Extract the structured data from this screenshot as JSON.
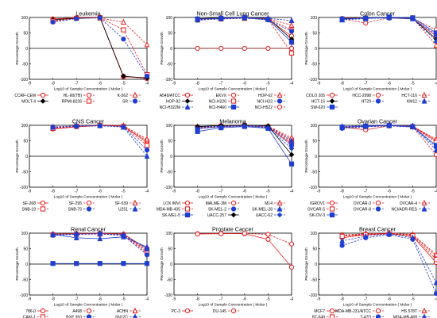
{
  "figure": {
    "common": {
      "xlabel": "Log10 of Sample Concentration ( Molar )",
      "ylabel": "Percentage Growth",
      "xlim": [
        -9,
        -4
      ],
      "ylim": [
        -100,
        100
      ],
      "xticks": [
        -9,
        -8,
        -7,
        -6,
        -5,
        -4
      ],
      "yticks": [
        -100,
        -50,
        0,
        50,
        100
      ],
      "grid": "horizontal lines at y=0 (solid) plus frame"
    }
  },
  "chart_data": [
    {
      "type": "line",
      "title": "Leukemia",
      "x": [
        -8,
        -7,
        -6,
        -5,
        -4
      ],
      "series": [
        {
          "name": "CCRF-CEM",
          "color": "#e31a1c",
          "marker": "circle",
          "dash": "solid",
          "values": [
            95,
            99,
            100,
            -92,
            -95
          ]
        },
        {
          "name": "HL-60(TB)",
          "color": "#e31a1c",
          "marker": "circle",
          "dash": "dashed",
          "values": [
            90,
            98,
            101,
            -90,
            -98
          ]
        },
        {
          "name": "K-562",
          "color": "#e31a1c",
          "marker": "triangle",
          "dash": "dashed",
          "values": [
            94,
            99,
            98,
            85,
            12
          ]
        },
        {
          "name": "MOLT-4",
          "color": "#000000",
          "marker": "diamond",
          "dash": "solid",
          "values": [
            93,
            97,
            100,
            -90,
            -96
          ]
        },
        {
          "name": "RPMI-8226",
          "color": "#e31a1c",
          "marker": "square",
          "dash": "dashed",
          "values": [
            88,
            97,
            99,
            60,
            -85
          ]
        },
        {
          "name": "SR",
          "color": "#1f3fcf",
          "marker": "circle",
          "dash": "dashed",
          "values": [
            85,
            96,
            99,
            30,
            -90
          ]
        }
      ],
      "legend": [
        [
          "CCRF-CEM",
          "HL-60(TB)",
          "K-562"
        ],
        [
          "MOLT-4",
          "RPMI-8226",
          "SR"
        ]
      ]
    },
    {
      "type": "line",
      "title": "Non-Small Cell Lung Cancer",
      "x": [
        -8,
        -7,
        -6,
        -5,
        -4
      ],
      "series": [
        {
          "name": "A549/ATCC",
          "color": "#e31a1c",
          "marker": "circle",
          "dash": "solid",
          "values": [
            95,
            98,
            99,
            94,
            40
          ]
        },
        {
          "name": "EKVX",
          "color": "#e31a1c",
          "marker": "circle",
          "dash": "dashed",
          "values": [
            93,
            97,
            100,
            95,
            60
          ]
        },
        {
          "name": "HOP-62",
          "color": "#e31a1c",
          "marker": "triangle",
          "dash": "dashed",
          "values": [
            94,
            96,
            98,
            96,
            75
          ]
        },
        {
          "name": "HOP-92",
          "color": "#000000",
          "marker": "diamond",
          "dash": "solid",
          "values": [
            96,
            99,
            101,
            97,
            30
          ]
        },
        {
          "name": "NCI-H226",
          "color": "#e31a1c",
          "marker": "square",
          "dash": "dashed",
          "values": [
            92,
            95,
            97,
            94,
            -15
          ]
        },
        {
          "name": "NCI-H23",
          "color": "#1f3fcf",
          "marker": "circle",
          "dash": "dashed",
          "values": [
            91,
            95,
            98,
            92,
            55
          ]
        },
        {
          "name": "NCI-H322M",
          "color": "#1f3fcf",
          "marker": "triangle",
          "dash": "dashed",
          "values": [
            94,
            98,
            100,
            97,
            90
          ]
        },
        {
          "name": "NCI-H460",
          "color": "#1f3fcf",
          "marker": "square",
          "dash": "solid",
          "values": [
            95,
            97,
            99,
            93,
            20
          ]
        },
        {
          "name": "NCI-H522",
          "color": "#e31a1c",
          "marker": "circle",
          "dash": "dashed",
          "values": [
            0,
            0,
            0,
            0,
            0
          ]
        }
      ],
      "legend": [
        [
          "A549/ATCC",
          "EKVX",
          "HOP-62"
        ],
        [
          "HOP-92",
          "NCI-H226",
          "NCI-H23"
        ],
        [
          "NCI-H322M",
          "NCI-H460",
          "NCI-H522"
        ]
      ]
    },
    {
      "type": "line",
      "title": "Colon Cancer",
      "x": [
        -8,
        -7,
        -6,
        -5,
        -4
      ],
      "series": [
        {
          "name": "COLO 205",
          "color": "#e31a1c",
          "marker": "circle",
          "dash": "solid",
          "values": [
            97,
            99,
            98,
            96,
            40
          ]
        },
        {
          "name": "HCC-2998",
          "color": "#e31a1c",
          "marker": "circle",
          "dash": "dashed",
          "values": [
            95,
            82,
            99,
            97,
            60
          ]
        },
        {
          "name": "HCT-116",
          "color": "#e31a1c",
          "marker": "triangle",
          "dash": "dashed",
          "values": [
            93,
            97,
            100,
            98,
            10
          ]
        },
        {
          "name": "HCT-15",
          "color": "#000000",
          "marker": "diamond",
          "dash": "solid",
          "values": [
            96,
            98,
            99,
            97,
            30
          ]
        },
        {
          "name": "HT29",
          "color": "#1f3fcf",
          "marker": "circle",
          "dash": "dashed",
          "values": [
            94,
            97,
            98,
            95,
            45
          ]
        },
        {
          "name": "KM12",
          "color": "#1f3fcf",
          "marker": "triangle",
          "dash": "dashed",
          "values": [
            92,
            96,
            100,
            96,
            25
          ]
        },
        {
          "name": "SW-620",
          "color": "#1f3fcf",
          "marker": "square",
          "dash": "solid",
          "values": [
            95,
            98,
            101,
            99,
            50
          ]
        }
      ],
      "legend": [
        [
          "COLO 205",
          "HCC-2998",
          "HCT-116"
        ],
        [
          "HCT-15",
          "HT29",
          "KM12"
        ],
        [
          "SW-620",
          "",
          ""
        ]
      ]
    },
    {
      "type": "line",
      "title": "CNS Cancer",
      "x": [
        -8,
        -7,
        -6,
        -5,
        -4
      ],
      "series": [
        {
          "name": "SF-268",
          "color": "#e31a1c",
          "marker": "circle",
          "dash": "solid",
          "values": [
            88,
            95,
            99,
            97,
            45
          ]
        },
        {
          "name": "SF-295",
          "color": "#e31a1c",
          "marker": "circle",
          "dash": "dashed",
          "values": [
            92,
            96,
            100,
            96,
            50
          ]
        },
        {
          "name": "SF-539",
          "color": "#e31a1c",
          "marker": "triangle",
          "dash": "dashed",
          "values": [
            95,
            98,
            101,
            99,
            55
          ]
        },
        {
          "name": "SNB-19",
          "color": "#e31a1c",
          "marker": "square",
          "dash": "dashed",
          "values": [
            90,
            97,
            99,
            96,
            35
          ]
        },
        {
          "name": "SNB-75",
          "color": "#1f3fcf",
          "marker": "circle",
          "dash": "dashed",
          "values": [
            93,
            97,
            98,
            95,
            20
          ]
        },
        {
          "name": "U251",
          "color": "#1f3fcf",
          "marker": "triangle",
          "dash": "dashed",
          "values": [
            94,
            98,
            100,
            94,
            0
          ]
        }
      ],
      "legend": [
        [
          "SF-268",
          "SF-295",
          "SF-539"
        ],
        [
          "SNB-19",
          "SNB-75",
          "U251"
        ]
      ]
    },
    {
      "type": "line",
      "title": "Melanoma",
      "x": [
        -8,
        -7,
        -6,
        -5,
        -4
      ],
      "series": [
        {
          "name": "LOX IMVI",
          "color": "#e31a1c",
          "marker": "circle",
          "dash": "solid",
          "values": [
            90,
            96,
            99,
            94,
            40
          ]
        },
        {
          "name": "MALME-3M",
          "color": "#e31a1c",
          "marker": "circle",
          "dash": "dashed",
          "values": [
            92,
            95,
            98,
            96,
            55
          ]
        },
        {
          "name": "M14",
          "color": "#e31a1c",
          "marker": "triangle",
          "dash": "dashed",
          "values": [
            94,
            98,
            100,
            97,
            60
          ]
        },
        {
          "name": "MDA-MB-435",
          "color": "#e31a1c",
          "marker": "square",
          "dash": "dashed",
          "values": [
            93,
            97,
            99,
            95,
            45
          ]
        },
        {
          "name": "SK-MEL-2",
          "color": "#1f3fcf",
          "marker": "circle",
          "dash": "dashed",
          "values": [
            91,
            96,
            97,
            94,
            35
          ]
        },
        {
          "name": "SK-MEL-28",
          "color": "#1f3fcf",
          "marker": "triangle",
          "dash": "dashed",
          "values": [
            95,
            97,
            99,
            96,
            50
          ]
        },
        {
          "name": "SK-MEL-5",
          "color": "#1f3fcf",
          "marker": "square",
          "dash": "solid",
          "values": [
            80,
            92,
            96,
            90,
            -25
          ]
        },
        {
          "name": "UACC-257",
          "color": "#000000",
          "marker": "diamond",
          "dash": "solid",
          "values": [
            96,
            99,
            101,
            98,
            5
          ]
        },
        {
          "name": "UACC-62",
          "color": "#1f3fcf",
          "marker": "diamond",
          "dash": "dashed",
          "values": [
            89,
            95,
            98,
            92,
            25
          ]
        }
      ],
      "legend": [
        [
          "LOX IMVI",
          "MALME-3M",
          "M14"
        ],
        [
          "MDA-MB-435",
          "SK-MEL-2",
          "SK-MEL-28"
        ],
        [
          "SK-MEL-5",
          "UACC-257",
          "UACC-62"
        ]
      ]
    },
    {
      "type": "line",
      "title": "Ovarian Cancer",
      "x": [
        -8,
        -7,
        -6,
        -5,
        -4
      ],
      "series": [
        {
          "name": "IGROV1",
          "color": "#e31a1c",
          "marker": "circle",
          "dash": "solid",
          "values": [
            95,
            85,
            99,
            97,
            50
          ]
        },
        {
          "name": "OVCAR-3",
          "color": "#e31a1c",
          "marker": "circle",
          "dash": "dashed",
          "values": [
            92,
            96,
            98,
            95,
            5
          ]
        },
        {
          "name": "OVCAR-4",
          "color": "#e31a1c",
          "marker": "triangle",
          "dash": "dashed",
          "values": [
            94,
            98,
            100,
            97,
            55
          ]
        },
        {
          "name": "OVCAR-5",
          "color": "#e31a1c",
          "marker": "square",
          "dash": "dashed",
          "values": [
            93,
            97,
            99,
            96,
            45
          ]
        },
        {
          "name": "OVCAR-8",
          "color": "#1f3fcf",
          "marker": "circle",
          "dash": "dashed",
          "values": [
            90,
            95,
            98,
            94,
            30
          ]
        },
        {
          "name": "NCI/ADR-RES",
          "color": "#1f3fcf",
          "marker": "triangle",
          "dash": "dashed",
          "values": [
            96,
            99,
            101,
            98,
            20
          ]
        },
        {
          "name": "SK-OV-3",
          "color": "#1f3fcf",
          "marker": "square",
          "dash": "solid",
          "values": [
            94,
            97,
            99,
            95,
            35
          ]
        }
      ],
      "legend": [
        [
          "IGROV1",
          "OVCAR-3",
          "OVCAR-4"
        ],
        [
          "OVCAR-5",
          "OVCAR-8",
          "NCI/ADR-RES"
        ],
        [
          "SK-OV-3",
          "",
          ""
        ]
      ]
    },
    {
      "type": "line",
      "title": "Renal Cancer",
      "x": [
        -8,
        -7,
        -6,
        -5,
        -4
      ],
      "series": [
        {
          "name": "786-0",
          "color": "#e31a1c",
          "marker": "circle",
          "dash": "solid",
          "values": [
            97,
            98,
            99,
            97,
            50
          ]
        },
        {
          "name": "A498",
          "color": "#e31a1c",
          "marker": "circle",
          "dash": "dashed",
          "values": [
            95,
            97,
            98,
            95,
            45
          ]
        },
        {
          "name": "ACHN",
          "color": "#e31a1c",
          "marker": "triangle",
          "dash": "dashed",
          "values": [
            96,
            99,
            100,
            96,
            40
          ]
        },
        {
          "name": "CAKI-1",
          "color": "#e31a1c",
          "marker": "square",
          "dash": "dashed",
          "values": [
            94,
            96,
            97,
            93,
            35
          ]
        },
        {
          "name": "RXF 393",
          "color": "#1f3fcf",
          "marker": "circle",
          "dash": "dashed",
          "values": [
            93,
            96,
            98,
            92,
            30
          ]
        },
        {
          "name": "SN12C",
          "color": "#1f3fcf",
          "marker": "triangle",
          "dash": "dashed",
          "values": [
            95,
            97,
            99,
            94,
            50
          ]
        },
        {
          "name": "TK-10",
          "color": "#1f3fcf",
          "marker": "triangle",
          "dash": "solid",
          "values": [
            96,
            85,
            82,
            88,
            55
          ]
        },
        {
          "name": "UO-31",
          "color": "#1f3fcf",
          "marker": "square",
          "dash": "solid",
          "values": [
            2,
            2,
            2,
            2,
            2
          ]
        }
      ],
      "legend": [
        [
          "786-0",
          "A498",
          "ACHN"
        ],
        [
          "CAKI-1",
          "RXF 393",
          "SN12C"
        ],
        [
          "TK-10",
          "UO-31",
          ""
        ]
      ]
    },
    {
      "type": "line",
      "title": "Prostate Cancer",
      "x": [
        -8,
        -7,
        -6,
        -5,
        -4
      ],
      "series": [
        {
          "name": "PC-3",
          "color": "#e31a1c",
          "marker": "circle",
          "dash": "solid",
          "values": [
            98,
            99,
            98,
            80,
            -10
          ]
        },
        {
          "name": "DU-145",
          "color": "#e31a1c",
          "marker": "circle",
          "dash": "dashed",
          "values": [
            97,
            98,
            99,
            96,
            65
          ]
        }
      ],
      "legend": [
        [
          "PC-3",
          "DU-145",
          ""
        ]
      ]
    },
    {
      "type": "line",
      "title": "Breast Cancer",
      "x": [
        -8,
        -7,
        -6,
        -5,
        -4
      ],
      "series": [
        {
          "name": "MCF7",
          "color": "#e31a1c",
          "marker": "circle",
          "dash": "solid",
          "values": [
            85,
            95,
            99,
            90,
            5
          ]
        },
        {
          "name": "MDA-MB-231/ATCC",
          "color": "#e31a1c",
          "marker": "circle",
          "dash": "dashed",
          "values": [
            92,
            96,
            98,
            94,
            25
          ]
        },
        {
          "name": "HS 578T",
          "color": "#e31a1c",
          "marker": "triangle",
          "dash": "dashed",
          "values": [
            94,
            98,
            100,
            96,
            30
          ]
        },
        {
          "name": "BT-549",
          "color": "#e31a1c",
          "marker": "square",
          "dash": "dashed",
          "values": [
            90,
            95,
            97,
            92,
            15
          ]
        },
        {
          "name": "T-47D",
          "color": "#1f3fcf",
          "marker": "circle",
          "dash": "dashed",
          "values": [
            60,
            85,
            95,
            80,
            -95
          ]
        },
        {
          "name": "MDA-MB-468",
          "color": "#1f3fcf",
          "marker": "triangle",
          "dash": "dashed",
          "values": [
            75,
            90,
            98,
            85,
            -60
          ]
        }
      ],
      "legend": [
        [
          "MCF7",
          "MDA-MB-231/ATCC",
          "HS 578T"
        ],
        [
          "BT-549",
          "T-47D",
          "MDA-MB-468"
        ]
      ]
    }
  ]
}
